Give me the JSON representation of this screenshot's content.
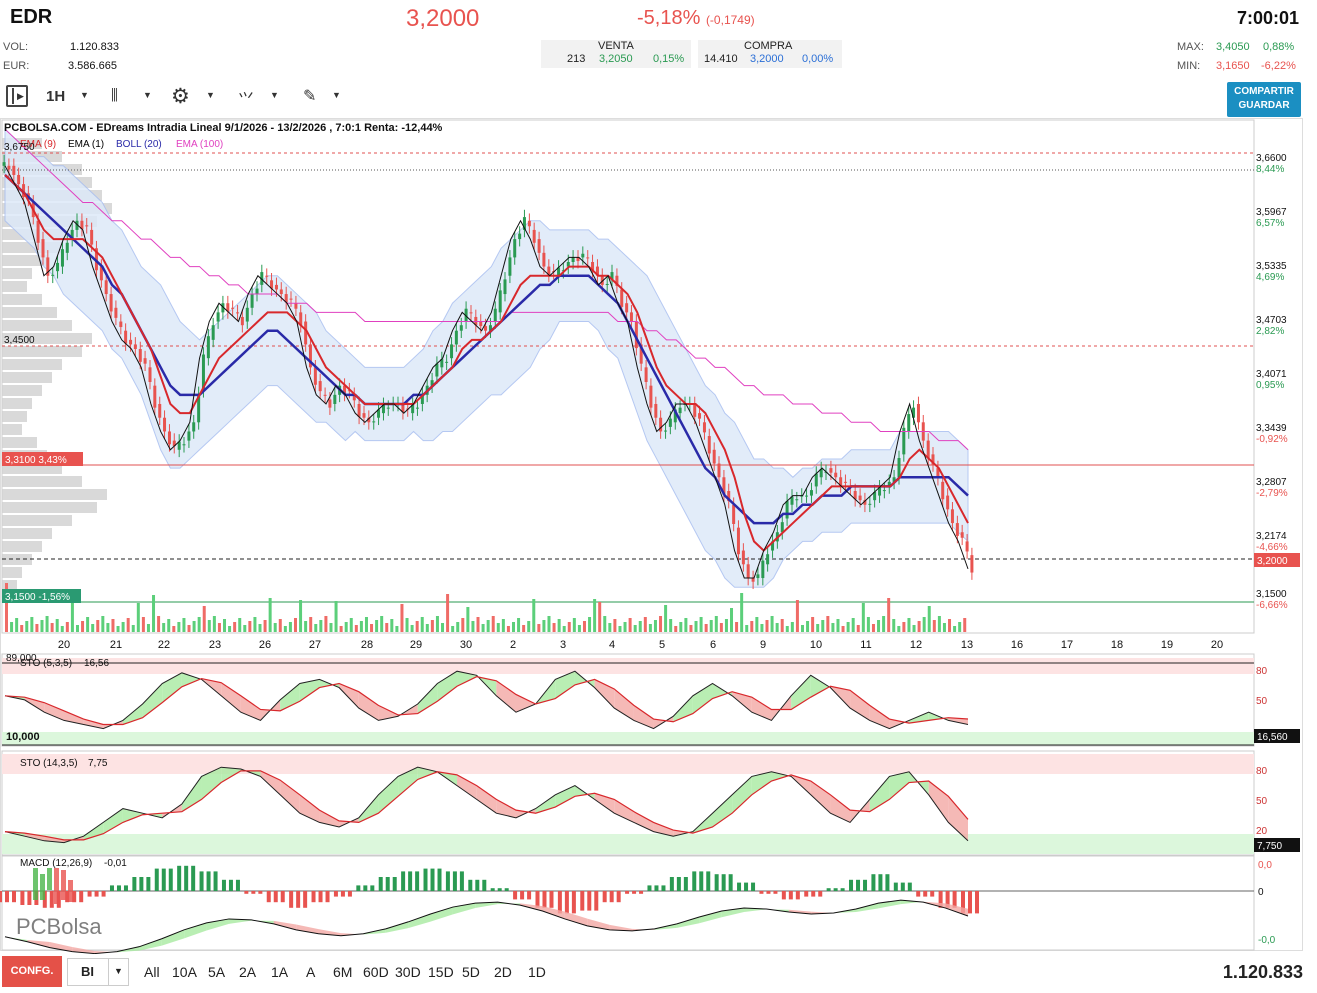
{
  "header": {
    "ticker": "EDR",
    "price": "3,2000",
    "change_pct": "-5,18%",
    "change_abs": "(-0,1749)",
    "time": "7:00:01",
    "vol_label": "VOL:",
    "vol_value": "1.120.833",
    "eur_label": "EUR:",
    "eur_value": "3.586.665",
    "venta_label": "VENTA",
    "venta_qty": "213",
    "venta_price": "3,2050",
    "venta_pct": "0,15%",
    "compra_label": "COMPRA",
    "compra_qty": "14.410",
    "compra_price": "3,2000",
    "compra_pct": "0,00%",
    "max_label": "MAX:",
    "max_value": "3,4050",
    "max_pct": "0,88%",
    "min_label": "MIN:",
    "min_value": "3,1650",
    "min_pct": "-6,22%"
  },
  "toolbar": {
    "timeframe": "1H",
    "share_line1": "COMPARTIR",
    "share_line2": "GUARDAR"
  },
  "chart_data": {
    "type": "candlestick",
    "title": "PCBOLSA.COM - EDreams Intradia Lineal 9/1/2026 - 13/2/2026 , 7:0:1 Renta: -12,44%",
    "legend": [
      "EMA (9)",
      "EMA (1)",
      "BOLL (20)",
      "EMA (100)"
    ],
    "legend_colors": [
      "#d8282c",
      "#000000",
      "#2a2aa8",
      "#e040c0"
    ],
    "x_labels": [
      "20",
      "21",
      "22",
      "23",
      "26",
      "27",
      "28",
      "29",
      "30",
      "2",
      "3",
      "4",
      "5",
      "6",
      "9",
      "10",
      "11",
      "12",
      "13",
      "16",
      "17",
      "18",
      "19",
      "20"
    ],
    "y_ticks": [
      {
        "price": "3,6600",
        "pct": "8,44%"
      },
      {
        "price": "3,5967",
        "pct": "6,57%"
      },
      {
        "price": "3,5335",
        "pct": "4,69%"
      },
      {
        "price": "3,4703",
        "pct": "2,82%"
      },
      {
        "price": "3,4071",
        "pct": "0,95%"
      },
      {
        "price": "3,3439",
        "pct": "-0,92%"
      },
      {
        "price": "3,2807",
        "pct": "-2,79%"
      },
      {
        "price": "3,2174",
        "pct": "-4,66%"
      },
      {
        "price": "3,1500",
        "pct": "-6,66%"
      }
    ],
    "ylim": [
      3.13,
      3.69
    ],
    "level_labels": {
      "top": "3,6750",
      "mid": "3,4500",
      "res": "3,3100  3,43%",
      "sup": "3,1500  -1,56%",
      "last": "3,2000"
    },
    "close_path": [
      3.64,
      3.62,
      3.6,
      3.56,
      3.52,
      3.53,
      3.56,
      3.58,
      3.57,
      3.53,
      3.5,
      3.47,
      3.45,
      3.44,
      3.42,
      3.38,
      3.35,
      3.33,
      3.34,
      3.36,
      3.43,
      3.47,
      3.49,
      3.48,
      3.47,
      3.5,
      3.52,
      3.51,
      3.5,
      3.49,
      3.47,
      3.42,
      3.39,
      3.38,
      3.4,
      3.39,
      3.37,
      3.36,
      3.37,
      3.38,
      3.38,
      3.37,
      3.38,
      3.4,
      3.42,
      3.43,
      3.46,
      3.48,
      3.47,
      3.46,
      3.48,
      3.52,
      3.56,
      3.58,
      3.56,
      3.53,
      3.52,
      3.53,
      3.54,
      3.54,
      3.53,
      3.51,
      3.52,
      3.49,
      3.47,
      3.42,
      3.38,
      3.35,
      3.36,
      3.38,
      3.38,
      3.36,
      3.33,
      3.3,
      3.27,
      3.22,
      3.19,
      3.19,
      3.22,
      3.24,
      3.27,
      3.28,
      3.28,
      3.3,
      3.31,
      3.3,
      3.29,
      3.28,
      3.27,
      3.28,
      3.29,
      3.3,
      3.35,
      3.38,
      3.34,
      3.31,
      3.28,
      3.25,
      3.23,
      3.2
    ],
    "ema9": [
      3.63,
      3.62,
      3.61,
      3.59,
      3.57,
      3.56,
      3.56,
      3.56,
      3.56,
      3.55,
      3.54,
      3.52,
      3.5,
      3.48,
      3.46,
      3.44,
      3.41,
      3.38,
      3.37,
      3.37,
      3.39,
      3.41,
      3.43,
      3.44,
      3.45,
      3.46,
      3.47,
      3.48,
      3.48,
      3.48,
      3.47,
      3.46,
      3.44,
      3.42,
      3.41,
      3.4,
      3.39,
      3.38,
      3.38,
      3.38,
      3.38,
      3.38,
      3.38,
      3.39,
      3.4,
      3.41,
      3.42,
      3.44,
      3.45,
      3.45,
      3.46,
      3.47,
      3.49,
      3.51,
      3.52,
      3.52,
      3.52,
      3.52,
      3.53,
      3.53,
      3.53,
      3.52,
      3.52,
      3.51,
      3.5,
      3.48,
      3.45,
      3.42,
      3.4,
      3.39,
      3.38,
      3.38,
      3.37,
      3.35,
      3.33,
      3.3,
      3.26,
      3.23,
      3.22,
      3.23,
      3.24,
      3.25,
      3.26,
      3.27,
      3.28,
      3.29,
      3.29,
      3.29,
      3.29,
      3.29,
      3.29,
      3.29,
      3.3,
      3.32,
      3.33,
      3.32,
      3.31,
      3.29,
      3.27,
      3.25
    ],
    "boll_mid": [
      3.63,
      3.62,
      3.61,
      3.6,
      3.59,
      3.58,
      3.57,
      3.56,
      3.55,
      3.54,
      3.53,
      3.51,
      3.5,
      3.48,
      3.46,
      3.44,
      3.42,
      3.4,
      3.39,
      3.39,
      3.39,
      3.4,
      3.41,
      3.42,
      3.43,
      3.44,
      3.45,
      3.46,
      3.46,
      3.45,
      3.44,
      3.43,
      3.42,
      3.41,
      3.4,
      3.39,
      3.39,
      3.38,
      3.38,
      3.38,
      3.38,
      3.38,
      3.39,
      3.39,
      3.4,
      3.41,
      3.42,
      3.43,
      3.44,
      3.45,
      3.46,
      3.47,
      3.48,
      3.49,
      3.5,
      3.51,
      3.51,
      3.52,
      3.52,
      3.52,
      3.52,
      3.51,
      3.5,
      3.49,
      3.47,
      3.45,
      3.43,
      3.41,
      3.39,
      3.37,
      3.35,
      3.33,
      3.31,
      3.3,
      3.28,
      3.27,
      3.26,
      3.25,
      3.25,
      3.25,
      3.26,
      3.26,
      3.27,
      3.27,
      3.28,
      3.28,
      3.28,
      3.29,
      3.29,
      3.29,
      3.29,
      3.29,
      3.3,
      3.3,
      3.3,
      3.3,
      3.3,
      3.3,
      3.29,
      3.28
    ],
    "boll_width": [
      0.05,
      0.05,
      0.05,
      0.05,
      0.06,
      0.06,
      0.07,
      0.07,
      0.07,
      0.07,
      0.07,
      0.07,
      0.07,
      0.07,
      0.07,
      0.08,
      0.09,
      0.09,
      0.08,
      0.07,
      0.06,
      0.06,
      0.06,
      0.06,
      0.06,
      0.06,
      0.06,
      0.06,
      0.06,
      0.06,
      0.06,
      0.06,
      0.06,
      0.05,
      0.05,
      0.05,
      0.04,
      0.04,
      0.04,
      0.04,
      0.04,
      0.04,
      0.04,
      0.05,
      0.06,
      0.06,
      0.07,
      0.07,
      0.07,
      0.07,
      0.07,
      0.08,
      0.08,
      0.08,
      0.08,
      0.07,
      0.06,
      0.05,
      0.05,
      0.05,
      0.05,
      0.05,
      0.06,
      0.06,
      0.07,
      0.08,
      0.09,
      0.09,
      0.09,
      0.09,
      0.09,
      0.09,
      0.09,
      0.09,
      0.09,
      0.09,
      0.08,
      0.07,
      0.07,
      0.06,
      0.05,
      0.04,
      0.04,
      0.04,
      0.04,
      0.04,
      0.04,
      0.04,
      0.04,
      0.04,
      0.04,
      0.04,
      0.05,
      0.05,
      0.05,
      0.05,
      0.05,
      0.05,
      0.05,
      0.05
    ],
    "ema100": [
      3.68,
      3.67,
      3.66,
      3.65,
      3.64,
      3.63,
      3.62,
      3.61,
      3.6,
      3.6,
      3.59,
      3.58,
      3.58,
      3.57,
      3.56,
      3.56,
      3.55,
      3.54,
      3.54,
      3.53,
      3.53,
      3.52,
      3.52,
      3.51,
      3.51,
      3.5,
      3.5,
      3.5,
      3.5,
      3.49,
      3.49,
      3.49,
      3.48,
      3.48,
      3.48,
      3.48,
      3.48,
      3.47,
      3.47,
      3.47,
      3.47,
      3.47,
      3.47,
      3.47,
      3.47,
      3.47,
      3.47,
      3.47,
      3.47,
      3.47,
      3.47,
      3.47,
      3.48,
      3.48,
      3.48,
      3.48,
      3.48,
      3.48,
      3.48,
      3.48,
      3.48,
      3.48,
      3.48,
      3.47,
      3.47,
      3.47,
      3.46,
      3.46,
      3.45,
      3.45,
      3.44,
      3.43,
      3.43,
      3.42,
      3.42,
      3.41,
      3.4,
      3.4,
      3.39,
      3.39,
      3.39,
      3.38,
      3.38,
      3.38,
      3.37,
      3.37,
      3.37,
      3.36,
      3.36,
      3.36,
      3.35,
      3.35,
      3.35,
      3.35,
      3.35,
      3.35,
      3.34,
      3.34,
      3.34,
      3.33
    ],
    "sto1": {
      "label": "STO (5,3,5)",
      "value": "16,56",
      "marker": "16,560",
      "k": [
        60,
        55,
        40,
        30,
        25,
        20,
        30,
        50,
        75,
        88,
        80,
        60,
        40,
        30,
        55,
        75,
        80,
        70,
        45,
        30,
        35,
        50,
        75,
        90,
        85,
        60,
        40,
        50,
        80,
        90,
        70,
        45,
        30,
        20,
        35,
        60,
        75,
        60,
        40,
        30,
        60,
        85,
        70,
        45,
        30,
        20,
        30,
        40,
        30,
        25
      ],
      "levels": [
        "80",
        "50",
        "20"
      ]
    },
    "sto2": {
      "label": "STO (14,3,5)",
      "value": "7,75",
      "marker": "7,750",
      "k": [
        20,
        15,
        10,
        8,
        15,
        30,
        45,
        40,
        35,
        50,
        80,
        90,
        88,
        80,
        60,
        40,
        30,
        25,
        35,
        60,
        80,
        90,
        85,
        70,
        55,
        40,
        35,
        45,
        60,
        70,
        55,
        40,
        30,
        20,
        15,
        20,
        40,
        60,
        80,
        85,
        80,
        60,
        40,
        30,
        55,
        80,
        85,
        60,
        30,
        10
      ],
      "levels": [
        "80",
        "50",
        "20"
      ]
    },
    "macd": {
      "label": "MACD (12,26,9)",
      "value": "-0,01",
      "hist": [
        -0.004,
        -0.005,
        -0.006,
        -0.004,
        -0.002,
        0.002,
        0.005,
        0.008,
        0.009,
        0.007,
        0.004,
        -0.001,
        -0.004,
        -0.006,
        -0.004,
        -0.002,
        0.002,
        0.005,
        0.007,
        0.008,
        0.007,
        0.004,
        0.001,
        -0.003,
        -0.006,
        -0.008,
        -0.007,
        -0.004,
        -0.001,
        0.002,
        0.005,
        0.007,
        0.006,
        0.003,
        -0.001,
        -0.003,
        -0.002,
        0.001,
        0.004,
        0.006,
        0.003,
        -0.002,
        -0.006,
        -0.008
      ],
      "levels": [
        "0,0",
        "0",
        "-0,0"
      ]
    },
    "volume_label": "89,000",
    "volume_ref": "10,000"
  },
  "timeframes": [
    "All",
    "10A",
    "5A",
    "2A",
    "1A",
    "A",
    "6M",
    "60D",
    "30D",
    "15D",
    "5D",
    "2D",
    "1D"
  ],
  "footer": {
    "config_label": "CONFG.",
    "select_value": "BI",
    "total_volume": "1.120.833"
  },
  "watermark": "PCBolsa"
}
